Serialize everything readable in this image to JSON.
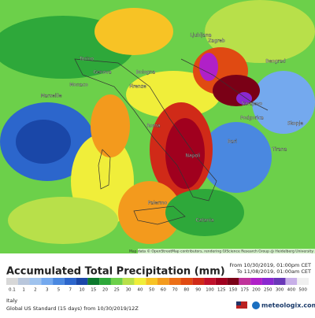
{
  "header": {
    "title": "Accumulated Total Precipitation (mm)",
    "from": "From 10/30/2019, 01:00pm CET",
    "to": "To 11/08/2019, 01:00am CET"
  },
  "map": {
    "attribution": "Map data © OpenStreetMap contributors, rendering GIScience Research Group @ Heidelberg University",
    "cities": [
      "Ljubljana",
      "Zagreb",
      "Beograd",
      "Torino",
      "Genova",
      "Bologna",
      "Monaco",
      "Marseille",
      "Firenze",
      "Sarajevo",
      "Roma",
      "Podgorica",
      "Skopje",
      "Bari",
      "Napoli",
      "Tirana",
      "Palermo",
      "Catania"
    ]
  },
  "legend": [
    {
      "value": "0.1",
      "color": "#d8d8d8"
    },
    {
      "value": "1",
      "color": "#b9c7dc"
    },
    {
      "value": "2",
      "color": "#9fc3ee"
    },
    {
      "value": "3",
      "color": "#74a9ee"
    },
    {
      "value": "5",
      "color": "#4a88e0"
    },
    {
      "value": "7",
      "color": "#2c66cc"
    },
    {
      "value": "10",
      "color": "#1a47a8"
    },
    {
      "value": "15",
      "color": "#0d7a2e"
    },
    {
      "value": "20",
      "color": "#2ea83a"
    },
    {
      "value": "25",
      "color": "#6cd04a"
    },
    {
      "value": "30",
      "color": "#b8e04a"
    },
    {
      "value": "40",
      "color": "#f0ee3a"
    },
    {
      "value": "50",
      "color": "#f7c325"
    },
    {
      "value": "60",
      "color": "#f39a1d"
    },
    {
      "value": "70",
      "color": "#ec6f17"
    },
    {
      "value": "80",
      "color": "#e04a12"
    },
    {
      "value": "90",
      "color": "#d02a18"
    },
    {
      "value": "100",
      "color": "#c0102a"
    },
    {
      "value": "125",
      "color": "#a0001e"
    },
    {
      "value": "150",
      "color": "#7a0016"
    },
    {
      "value": "175",
      "color": "#c0339a"
    },
    {
      "value": "200",
      "color": "#b020c8"
    },
    {
      "value": "250",
      "color": "#8a28d0"
    },
    {
      "value": "300",
      "color": "#6a38b8"
    },
    {
      "value": "400",
      "color": "#c8b0e8"
    },
    {
      "value": "500",
      "color": "#f0f0f0"
    }
  ],
  "footer": {
    "region": "Italy",
    "model": "Global US Standard (15 days) from 10/30/2019/12Z",
    "brand": "meteologix.com"
  }
}
